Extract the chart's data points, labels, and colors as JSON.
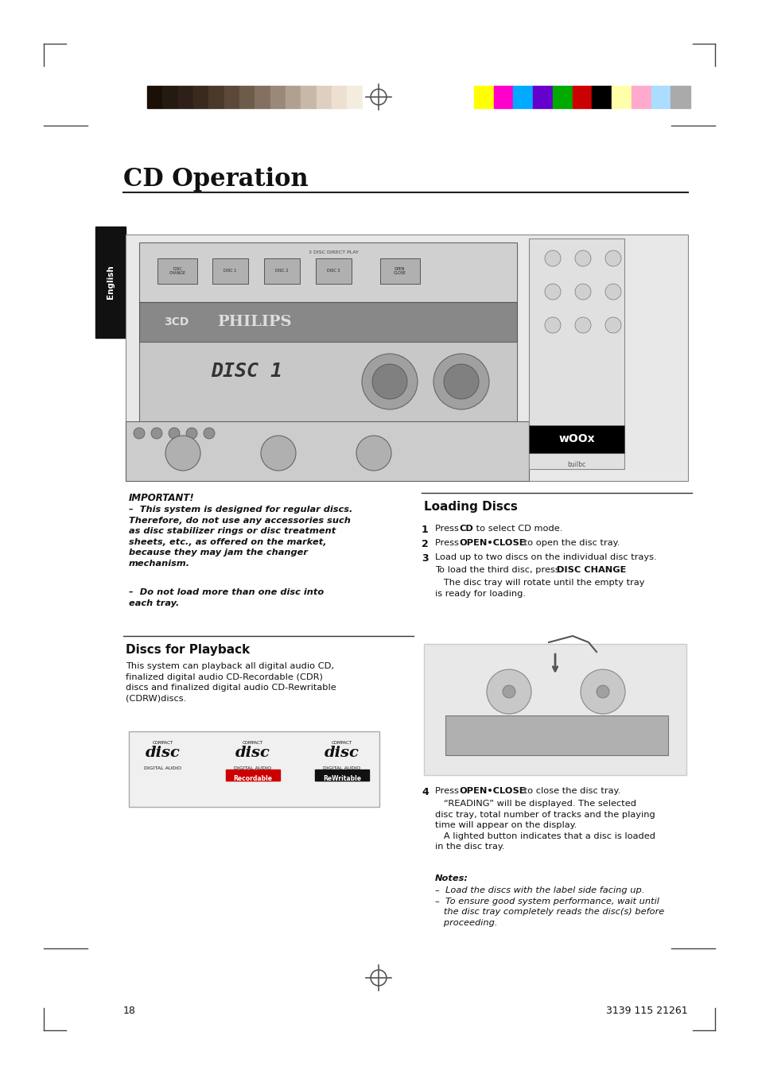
{
  "page_bg": "#ffffff",
  "title": "CD Operation",
  "color_bar_left": [
    "#1a1008",
    "#231a10",
    "#2e2018",
    "#3a2a1e",
    "#4a3828",
    "#5c4838",
    "#6e5c4a",
    "#837060",
    "#9a8878",
    "#b0a090",
    "#c8b8a8",
    "#ddd0c0",
    "#eee0d0",
    "#f5ece0",
    "#ffffff"
  ],
  "color_bar_right": [
    "#ffff00",
    "#ff00cc",
    "#00aaff",
    "#6600cc",
    "#00aa00",
    "#cc0000",
    "#000000",
    "#ffffaa",
    "#ffaacc",
    "#aaddff",
    "#aaaaaa"
  ],
  "section_left_title": "Discs for Playback",
  "section_left_body": "This system can playback all digital audio CD,\nfinalized digital audio CD-Recordable (CDR)\ndiscs and finalized digital audio CD-Rewritable\n(CDRW)discs.",
  "important_title": "IMPORTANT!",
  "important_body1": "–  This system is designed for regular discs.\nTherefore, do not use any accessories such\nas disc stabilizer rings or disc treatment\nsheets, etc., as offered on the market,\nbecause they may jam the changer\nmechanism.",
  "important_body2": "–  Do not load more than one disc into\neach tray.",
  "section_right_title": "Loading Discs",
  "step4_bold": "OPEN•CLOSE",
  "step4_text": "Press OPEN•CLOSE to close the disc tray.\n   “READING” will be displayed. The selected\ndisc tray, total number of tracks and the playing\ntime will appear on the display.\n   A lighted button indicates that a disc is loaded\nin the disc tray.",
  "notes_title": "Notes:",
  "notes_text": "–  Load the discs with the label side facing up.\n–  To ensure good system performance, wait until\n   the disc tray completely reads the disc(s) before\n   proceeding.",
  "page_number_left": "18",
  "page_number_right": "3139 115 21261",
  "sidebar_text": "English",
  "english_tab_bg": "#111111",
  "english_tab_text": "#ffffff"
}
